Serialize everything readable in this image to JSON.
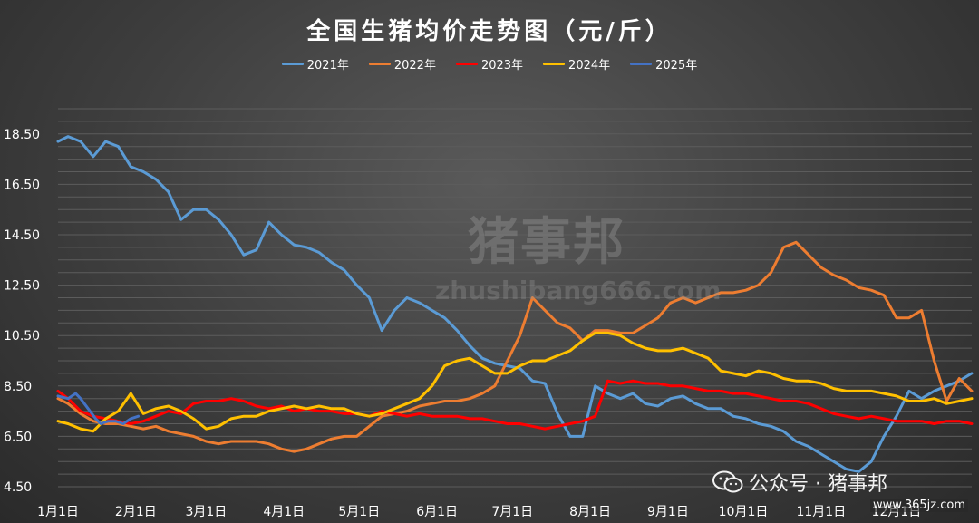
{
  "chart_data": {
    "type": "line",
    "title": "全国生猪均价走势图（元/斤）",
    "xlabel": "",
    "ylabel": "",
    "ylim": [
      4.5,
      19.5
    ],
    "yticks": [
      "4.50",
      "6.50",
      "8.50",
      "10.50",
      "12.50",
      "14.50",
      "16.50",
      "18.50"
    ],
    "x_tick_labels": [
      "1月1日",
      "2月1日",
      "3月1日",
      "4月1日",
      "5月1日",
      "6月1日",
      "7月1日",
      "8月1日",
      "9月1日",
      "10月1日",
      "11月1日",
      "12月1日"
    ],
    "legend_position": "top",
    "grid": true,
    "series": [
      {
        "name": "2021年",
        "color": "#5b9bd5",
        "x": [
          1,
          5,
          10,
          15,
          20,
          25,
          30,
          35,
          40,
          45,
          50,
          55,
          60,
          65,
          70,
          75,
          80,
          85,
          90,
          95,
          100,
          105,
          110,
          115,
          120,
          125,
          130,
          135,
          140,
          145,
          150,
          155,
          160,
          165,
          170,
          175,
          180,
          185,
          190,
          195,
          200,
          205,
          210,
          215,
          220,
          225,
          230,
          235,
          240,
          245,
          250,
          255,
          260,
          265,
          270,
          275,
          280,
          285,
          290,
          295,
          300,
          305,
          310,
          315,
          320,
          325,
          330,
          335,
          340,
          345,
          350,
          355,
          360,
          365
        ],
        "y": [
          18.2,
          18.4,
          18.2,
          17.6,
          18.2,
          18.0,
          17.2,
          17.0,
          16.7,
          16.2,
          15.1,
          15.5,
          15.5,
          15.1,
          14.5,
          13.7,
          13.9,
          15.0,
          14.5,
          14.1,
          14.0,
          13.8,
          13.4,
          13.1,
          12.5,
          12.0,
          10.7,
          11.5,
          12.0,
          11.8,
          11.5,
          11.2,
          10.7,
          10.1,
          9.6,
          9.4,
          9.3,
          9.2,
          8.7,
          8.6,
          7.4,
          6.5,
          6.5,
          8.5,
          8.2,
          8.0,
          8.2,
          7.8,
          7.7,
          8.0,
          8.1,
          7.8,
          7.6,
          7.6,
          7.3,
          7.2,
          7.0,
          6.9,
          6.7,
          6.3,
          6.1,
          5.8,
          5.5,
          5.2,
          5.1,
          5.5,
          6.5,
          7.3,
          8.3,
          8.0,
          8.3,
          8.5,
          8.7,
          9.0
        ]
      },
      {
        "name": "2022年",
        "color": "#ed7d31",
        "x": [
          1,
          5,
          10,
          15,
          20,
          25,
          30,
          35,
          40,
          45,
          50,
          55,
          60,
          65,
          70,
          75,
          80,
          85,
          90,
          95,
          100,
          105,
          110,
          115,
          120,
          125,
          130,
          135,
          140,
          145,
          150,
          155,
          160,
          165,
          170,
          175,
          180,
          185,
          190,
          195,
          200,
          205,
          210,
          215,
          220,
          225,
          230,
          235,
          240,
          245,
          250,
          255,
          260,
          265,
          270,
          275,
          280,
          285,
          290,
          295,
          300,
          305,
          310,
          315,
          320,
          325,
          330,
          335,
          340,
          345,
          350,
          355,
          360,
          365
        ],
        "y": [
          8.0,
          7.8,
          7.4,
          7.1,
          7.0,
          7.0,
          6.9,
          6.8,
          6.9,
          6.7,
          6.6,
          6.5,
          6.3,
          6.2,
          6.3,
          6.3,
          6.3,
          6.2,
          6.0,
          5.9,
          6.0,
          6.2,
          6.4,
          6.5,
          6.5,
          6.9,
          7.3,
          7.4,
          7.5,
          7.7,
          7.8,
          7.9,
          7.9,
          8.0,
          8.2,
          8.5,
          9.5,
          10.5,
          12.0,
          11.5,
          11.0,
          10.8,
          10.3,
          10.7,
          10.7,
          10.6,
          10.6,
          10.9,
          11.2,
          11.8,
          12.0,
          11.8,
          12.0,
          12.2,
          12.2,
          12.3,
          12.5,
          13.0,
          14.0,
          14.2,
          13.7,
          13.2,
          12.9,
          12.7,
          12.4,
          12.3,
          12.1,
          11.2,
          11.2,
          11.5,
          9.5,
          7.9,
          8.8,
          8.3
        ]
      },
      {
        "name": "2023年",
        "color": "#ff0000",
        "x": [
          1,
          5,
          10,
          15,
          20,
          25,
          30,
          35,
          40,
          45,
          50,
          55,
          60,
          65,
          70,
          75,
          80,
          85,
          90,
          95,
          100,
          105,
          110,
          115,
          120,
          125,
          130,
          135,
          140,
          145,
          150,
          155,
          160,
          165,
          170,
          175,
          180,
          185,
          190,
          195,
          200,
          205,
          210,
          215,
          220,
          225,
          230,
          235,
          240,
          245,
          250,
          255,
          260,
          265,
          270,
          275,
          280,
          285,
          290,
          295,
          300,
          305,
          310,
          315,
          320,
          325,
          330,
          335,
          340,
          345,
          350,
          355,
          360,
          365
        ],
        "y": [
          8.3,
          8.0,
          7.5,
          7.3,
          7.2,
          7.1,
          7.0,
          7.1,
          7.3,
          7.5,
          7.4,
          7.8,
          7.9,
          7.9,
          8.0,
          7.9,
          7.7,
          7.6,
          7.7,
          7.5,
          7.6,
          7.5,
          7.5,
          7.4,
          7.4,
          7.3,
          7.5,
          7.4,
          7.3,
          7.4,
          7.3,
          7.3,
          7.3,
          7.2,
          7.2,
          7.1,
          7.0,
          7.0,
          6.9,
          6.8,
          6.9,
          7.0,
          7.1,
          7.3,
          8.7,
          8.6,
          8.7,
          8.6,
          8.6,
          8.5,
          8.5,
          8.4,
          8.3,
          8.3,
          8.2,
          8.2,
          8.1,
          8.0,
          7.9,
          7.9,
          7.8,
          7.6,
          7.4,
          7.3,
          7.2,
          7.3,
          7.2,
          7.1,
          7.1,
          7.1,
          7.0,
          7.1,
          7.1,
          7.0
        ]
      },
      {
        "name": "2024年",
        "color": "#ffc000",
        "x": [
          1,
          5,
          10,
          15,
          20,
          25,
          30,
          35,
          40,
          45,
          50,
          55,
          60,
          65,
          70,
          75,
          80,
          85,
          90,
          95,
          100,
          105,
          110,
          115,
          120,
          125,
          130,
          135,
          140,
          145,
          150,
          155,
          160,
          165,
          170,
          175,
          180,
          185,
          190,
          195,
          200,
          205,
          210,
          215,
          220,
          225,
          230,
          235,
          240,
          245,
          250,
          255,
          260,
          265,
          270,
          275,
          280,
          285,
          290,
          295,
          300,
          305,
          310,
          315,
          320,
          325,
          330,
          335,
          340,
          345,
          350,
          355,
          360,
          365
        ],
        "y": [
          7.1,
          7.0,
          6.8,
          6.7,
          7.2,
          7.5,
          8.2,
          7.4,
          7.6,
          7.7,
          7.5,
          7.2,
          6.8,
          6.9,
          7.2,
          7.3,
          7.3,
          7.5,
          7.6,
          7.7,
          7.6,
          7.7,
          7.6,
          7.6,
          7.4,
          7.3,
          7.4,
          7.6,
          7.8,
          8.0,
          8.5,
          9.3,
          9.5,
          9.6,
          9.3,
          9.0,
          9.0,
          9.3,
          9.5,
          9.5,
          9.7,
          9.9,
          10.3,
          10.6,
          10.6,
          10.5,
          10.2,
          10.0,
          9.9,
          9.9,
          10.0,
          9.8,
          9.6,
          9.1,
          9.0,
          8.9,
          9.1,
          9.0,
          8.8,
          8.7,
          8.7,
          8.6,
          8.4,
          8.3,
          8.3,
          8.3,
          8.2,
          8.1,
          7.9,
          7.9,
          8.0,
          7.8,
          7.9,
          8.0
        ]
      },
      {
        "name": "2025年",
        "color": "#4472c4",
        "x": [
          1,
          5,
          8,
          10,
          13,
          16,
          18,
          21,
          24,
          27,
          30,
          33
        ],
        "y": [
          8.1,
          8.0,
          8.2,
          8.0,
          7.6,
          7.2,
          7.0,
          7.1,
          7.1,
          7.0,
          7.2,
          7.3
        ]
      }
    ]
  },
  "watermark": {
    "brand": "猪事邦",
    "url": "zhushibang666.com"
  },
  "footer": {
    "wechat_label": "公众号 · 猪事邦",
    "site": "www.365jz.com"
  },
  "icons": {
    "wechat": "wechat-icon"
  }
}
